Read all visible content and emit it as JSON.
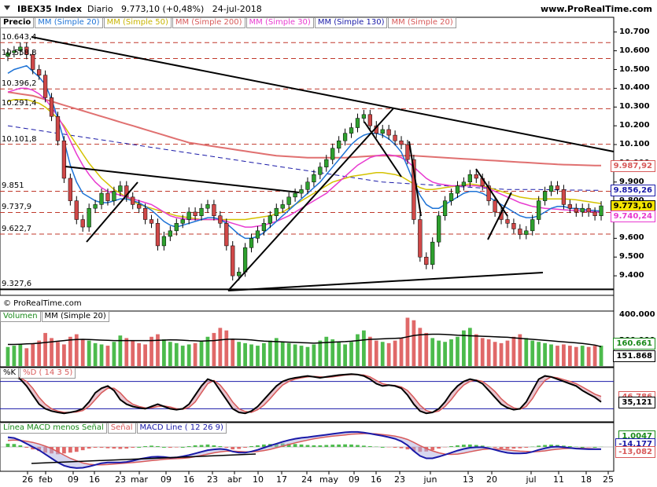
{
  "header": {
    "title": "IBEX35 Index",
    "period": "Diario",
    "last_change": "9.773,10 (+0,48%)",
    "date": "24-jul-2018",
    "site": "www.ProRealTime.com",
    "copyright": "© ProRealTime.com"
  },
  "price_panel": {
    "labels": [
      {
        "text": "Precio"
      },
      {
        "text": "MM (Simple 20)",
        "color": "#1e73d6"
      },
      {
        "text": "MM (Simple 50)",
        "color": "#c8b400"
      },
      {
        "text": "MM (Simple 200)",
        "color": "#d85a5a"
      },
      {
        "text": "MM (Simple 30)",
        "color": "#e83ad0"
      },
      {
        "text": "MM (Simple 130)",
        "color": "#1a1aa8"
      },
      {
        "text": "MM (Simple 20)",
        "color": "#d85a5a"
      }
    ],
    "level_labels": [
      "10.643,4",
      "10.558,8",
      "10.396,2",
      "10.291,4",
      "10.101,8",
      "9.851",
      "9.737,9",
      "9.622,7",
      "9.327,6"
    ],
    "axis_ticks": [
      "10.700",
      "10.600",
      "10.500",
      "10.400",
      "10.300",
      "10.200",
      "10.100",
      "10.000",
      "9.900",
      "9.800",
      "9.700",
      "9.600",
      "9.500",
      "9.400"
    ],
    "value_boxes": [
      {
        "text": "9.987,92",
        "color": "#d85a5a"
      },
      {
        "text": "9.856,26",
        "color": "#1a1aa8"
      },
      {
        "text": "9.773,10",
        "color": "#000000"
      },
      {
        "text": "9.740,24",
        "color": "#e83ad0"
      }
    ]
  },
  "volume_panel": {
    "labels": [
      {
        "text": "Volumen",
        "color": "#1a8a1a"
      },
      {
        "text": "MM (Simple 20)",
        "color": "#000000"
      }
    ],
    "axis_ticks": [
      "400.000",
      "200.000"
    ],
    "value_boxes": [
      {
        "text": "160.661",
        "color": "#1a8a1a"
      },
      {
        "text": "151.868",
        "color": "#000000"
      }
    ]
  },
  "stoch_panel": {
    "labels": [
      {
        "text": "%K",
        "color": "#000000"
      },
      {
        "text": "%D ( 14 3 5)",
        "color": "#d85a5a"
      }
    ],
    "value_boxes": [
      {
        "text": "46,786",
        "color": "#d85a5a"
      },
      {
        "text": "35,121",
        "color": "#000000"
      }
    ]
  },
  "macd_panel": {
    "labels": [
      {
        "text": "Línea MACD menos Señal",
        "color": "#1a8a1a"
      },
      {
        "text": "Señal",
        "color": "#d85a5a"
      },
      {
        "text": "MACD Line ( 12 26 9)",
        "color": "#1a1aa8"
      }
    ],
    "value_boxes": [
      {
        "text": "1,0047",
        "color": "#1a8a1a"
      },
      {
        "text": "-14,177",
        "color": "#1a1aa8"
      },
      {
        "text": "-13,082",
        "color": "#d85a5a"
      }
    ]
  },
  "x_axis": [
    "26",
    "feb",
    "09",
    "16",
    "23",
    "mar",
    "09",
    "16",
    "23",
    "abr",
    "10",
    "17",
    "24",
    "may",
    "09",
    "16",
    "23",
    "jun",
    "13",
    "20",
    "jul",
    "11",
    "18",
    "25"
  ],
  "chart_data": {
    "type": "candlestick",
    "y_range": [
      9300,
      10720
    ],
    "closes": [
      10590,
      10600,
      10620,
      10580,
      10500,
      10470,
      10350,
      10250,
      10120,
      9920,
      9800,
      9700,
      9660,
      9760,
      9780,
      9840,
      9800,
      9850,
      9880,
      9820,
      9780,
      9760,
      9700,
      9680,
      9560,
      9610,
      9640,
      9680,
      9700,
      9740,
      9720,
      9760,
      9780,
      9720,
      9680,
      9560,
      9400,
      9420,
      9550,
      9600,
      9640,
      9680,
      9720,
      9760,
      9780,
      9820,
      9840,
      9860,
      9900,
      9940,
      9980,
      10020,
      10080,
      10120,
      10160,
      10190,
      10240,
      10260,
      10200,
      10160,
      10180,
      10150,
      10120,
      10100,
      10020,
      9700,
      9500,
      9460,
      9580,
      9720,
      9800,
      9840,
      9880,
      9900,
      9940,
      9920,
      9880,
      9800,
      9740,
      9700,
      9680,
      9650,
      9620,
      9640,
      9700,
      9800,
      9850,
      9880,
      9860,
      9780,
      9760,
      9740,
      9760,
      9740,
      9720,
      9773
    ],
    "ma20": [
      10480,
      10500,
      10510,
      10520,
      10490,
      10460,
      10420,
      10340,
      10240,
      10120,
      9990,
      9900,
      9840,
      9820,
      9800,
      9790,
      9790,
      9800,
      9810,
      9810,
      9800,
      9790,
      9770,
      9750,
      9720,
      9690,
      9670,
      9660,
      9670,
      9680,
      9690,
      9700,
      9710,
      9710,
      9700,
      9680,
      9650,
      9620,
      9600,
      9600,
      9610,
      9630,
      9660,
      9690,
      9720,
      9750,
      9780,
      9810,
      9840,
      9870,
      9900,
      9940,
      9980,
      10020,
      10060,
      10100,
      10130,
      10150,
      10160,
      10160,
      10150,
      10130,
      10100,
      10060,
      9980,
      9900,
      9830,
      9780,
      9760,
      9760,
      9780,
      9800,
      9820,
      9840,
      9850,
      9850,
      9840,
      9820,
      9800,
      9780,
      9760,
      9740,
      9720,
      9710,
      9710,
      9720,
      9740,
      9760,
      9770,
      9770,
      9760,
      9760,
      9755,
      9750,
      9748,
      9745
    ],
    "ma50": [
      10330,
      10340,
      10340,
      10340,
      10330,
      10320,
      10300,
      10270,
      10240,
      10200,
      10150,
      10100,
      10050,
      10000,
      9960,
      9920,
      9890,
      9860,
      9840,
      9820,
      9800,
      9780,
      9770,
      9760,
      9750,
      9740,
      9730,
      9720,
      9715,
      9710,
      9705,
      9700,
      9700,
      9700,
      9700,
      9700,
      9700,
      9700,
      9700,
      9705,
      9710,
      9715,
      9720,
      9730,
      9740,
      9760,
      9780,
      9800,
      9820,
      9840,
      9860,
      9880,
      9900,
      9910,
      9920,
      9930,
      9935,
      9940,
      9945,
      9950,
      9950,
      9945,
      9940,
      9930,
      9910,
      9890,
      9870,
      9860,
      9860,
      9865,
      9870,
      9875,
      9880,
      9885,
      9890,
      9885,
      9880,
      9870,
      9860,
      9850,
      9840,
      9830,
      9820,
      9815,
      9810,
      9810,
      9810,
      9810,
      9810,
      9810,
      9808,
      9805,
      9800,
      9795,
      9790,
      9785
    ],
    "ma200": [
      10380,
      10375,
      10370,
      10365,
      10360,
      10350,
      10340,
      10330,
      10320,
      10310,
      10300,
      10290,
      10280,
      10270,
      10260,
      10250,
      10240,
      10230,
      10220,
      10210,
      10200,
      10190,
      10180,
      10170,
      10160,
      10150,
      10140,
      10130,
      10120,
      10110,
      10105,
      10100,
      10095,
      10090,
      10085,
      10080,
      10075,
      10070,
      10065,
      10060,
      10055,
      10050,
      10045,
      10040,
      10038,
      10036,
      10034,
      10032,
      10030,
      10030,
      10030,
      10030,
      10030,
      10030,
      10030,
      10032,
      10034,
      10036,
      10038,
      10040,
      10040,
      10040,
      10040,
      10040,
      10040,
      10040,
      10038,
      10036,
      10034,
      10032,
      10030,
      10028,
      10026,
      10024,
      10022,
      10020,
      10018,
      10016,
      10014,
      10012,
      10010,
      10008,
      10006,
      10004,
      10002,
      10000,
      9998,
      9996,
      9994,
      9993,
      9992,
      9991,
      9990,
      9989,
      9988,
      9988
    ],
    "ma30": [
      10380,
      10390,
      10400,
      10400,
      10390,
      10370,
      10340,
      10300,
      10250,
      10190,
      10120,
      10050,
      9990,
      9940,
      9900,
      9870,
      9850,
      9840,
      9830,
      9820,
      9810,
      9800,
      9790,
      9780,
      9760,
      9740,
      9720,
      9710,
      9705,
      9700,
      9700,
      9700,
      9700,
      9700,
      9700,
      9690,
      9680,
      9670,
      9660,
      9660,
      9665,
      9670,
      9680,
      9690,
      9705,
      9720,
      9740,
      9760,
      9780,
      9800,
      9820,
      9840,
      9870,
      9900,
      9930,
      9960,
      9990,
      10010,
      10030,
      10040,
      10045,
      10045,
      10040,
      10030,
      10010,
      9980,
      9950,
      9920,
      9900,
      9890,
      9885,
      9880,
      9880,
      9880,
      9880,
      9880,
      9875,
      9865,
      9850,
      9835,
      9820,
      9805,
      9790,
      9780,
      9770,
      9765,
      9760,
      9758,
      9755,
      9752,
      9750,
      9748,
      9745,
      9743,
      9741,
      9740
    ],
    "ma130_dashed": [
      10200,
      10195,
      10190,
      10185,
      10180,
      10175,
      10170,
      10165,
      10160,
      10155,
      10150,
      10145,
      10140,
      10135,
      10130,
      10125,
      10120,
      10115,
      10110,
      10105,
      10100,
      10095,
      10090,
      10085,
      10080,
      10075,
      10070,
      10065,
      10060,
      10055,
      10050,
      10045,
      10040,
      10035,
      10030,
      10025,
      10020,
      10015,
      10010,
      10005,
      10000,
      9995,
      9990,
      9985,
      9980,
      9975,
      9970,
      9965,
      9960,
      9955,
      9950,
      9945,
      9940,
      9935,
      9930,
      9925,
      9920,
      9915,
      9910,
      9905,
      9900,
      9898,
      9896,
      9894,
      9892,
      9890,
      9888,
      9886,
      9884,
      9882,
      9880,
      9878,
      9876,
      9874,
      9872,
      9870,
      9868,
      9866,
      9864,
      9862,
      9860,
      9860,
      9860,
      9860,
      9860,
      9860,
      9859,
      9859,
      9858,
      9858,
      9857,
      9857,
      9857,
      9856,
      9856,
      9856
    ],
    "volume": [
      150,
      160,
      170,
      140,
      180,
      200,
      260,
      220,
      190,
      170,
      230,
      250,
      210,
      200,
      180,
      170,
      160,
      190,
      240,
      220,
      200,
      180,
      170,
      230,
      250,
      210,
      190,
      180,
      160,
      170,
      180,
      200,
      230,
      260,
      300,
      280,
      210,
      190,
      180,
      170,
      160,
      180,
      200,
      220,
      190,
      180,
      170,
      160,
      150,
      170,
      200,
      230,
      210,
      190,
      170,
      190,
      250,
      280,
      230,
      200,
      190,
      180,
      200,
      220,
      380,
      360,
      300,
      260,
      220,
      200,
      190,
      210,
      230,
      280,
      300,
      250,
      220,
      210,
      190,
      180,
      200,
      230,
      250,
      220,
      200,
      190,
      180,
      170,
      160,
      170,
      160,
      150,
      160,
      150,
      160,
      160
    ],
    "volume_ma20": [
      170,
      170,
      172,
      174,
      176,
      180,
      185,
      190,
      195,
      200,
      205,
      208,
      210,
      208,
      206,
      204,
      202,
      200,
      200,
      200,
      200,
      200,
      200,
      200,
      202,
      204,
      206,
      205,
      203,
      200,
      198,
      196,
      198,
      200,
      205,
      210,
      212,
      210,
      208,
      205,
      200,
      196,
      194,
      192,
      190,
      188,
      186,
      184,
      182,
      180,
      182,
      185,
      188,
      190,
      192,
      195,
      200,
      205,
      210,
      212,
      214,
      216,
      218,
      220,
      230,
      240,
      245,
      248,
      250,
      250,
      248,
      245,
      242,
      240,
      238,
      236,
      234,
      232,
      230,
      228,
      226,
      222,
      218,
      214,
      210,
      206,
      202,
      198,
      194,
      190,
      186,
      182,
      178,
      172,
      165,
      152
    ],
    "stoch_k": [
      90,
      92,
      85,
      70,
      50,
      30,
      20,
      15,
      12,
      10,
      12,
      15,
      20,
      35,
      55,
      65,
      70,
      60,
      40,
      30,
      25,
      22,
      20,
      25,
      30,
      25,
      20,
      18,
      20,
      30,
      50,
      70,
      85,
      80,
      60,
      40,
      20,
      12,
      10,
      15,
      25,
      40,
      55,
      70,
      80,
      85,
      88,
      90,
      92,
      90,
      88,
      90,
      92,
      94,
      95,
      96,
      95,
      92,
      85,
      75,
      70,
      72,
      70,
      65,
      50,
      30,
      15,
      10,
      12,
      20,
      35,
      55,
      70,
      80,
      85,
      82,
      75,
      60,
      45,
      30,
      22,
      18,
      20,
      35,
      60,
      85,
      92,
      90,
      85,
      80,
      75,
      70,
      60,
      52,
      45,
      35
    ],
    "stoch_d": [
      88,
      90,
      88,
      80,
      65,
      45,
      30,
      20,
      15,
      12,
      12,
      13,
      16,
      25,
      40,
      55,
      65,
      65,
      55,
      40,
      30,
      25,
      22,
      22,
      25,
      26,
      24,
      20,
      19,
      23,
      35,
      55,
      75,
      82,
      72,
      55,
      35,
      20,
      14,
      12,
      18,
      28,
      42,
      58,
      72,
      80,
      85,
      88,
      90,
      91,
      90,
      89,
      90,
      92,
      94,
      95,
      95,
      94,
      90,
      82,
      75,
      72,
      71,
      68,
      60,
      45,
      28,
      16,
      12,
      15,
      25,
      40,
      58,
      72,
      80,
      83,
      80,
      70,
      58,
      42,
      30,
      22,
      19,
      25,
      42,
      65,
      82,
      90,
      88,
      84,
      80,
      75,
      68,
      60,
      52,
      47
    ],
    "macd_hist": [
      20,
      18,
      10,
      -5,
      -15,
      -25,
      -35,
      -40,
      -45,
      -40,
      -35,
      -30,
      -20,
      -10,
      -5,
      -5,
      -8,
      -10,
      -12,
      -10,
      -5,
      0,
      5,
      8,
      5,
      0,
      -5,
      -3,
      0,
      5,
      10,
      12,
      15,
      10,
      5,
      -5,
      -15,
      -12,
      -5,
      5,
      10,
      15,
      18,
      20,
      22,
      20,
      18,
      15,
      12,
      10,
      10,
      12,
      14,
      15,
      16,
      15,
      12,
      8,
      5,
      2,
      0,
      -2,
      -5,
      -8,
      -15,
      -25,
      -30,
      -28,
      -20,
      -10,
      -2,
      5,
      10,
      14,
      15,
      12,
      8,
      2,
      -5,
      -10,
      -12,
      -10,
      -8,
      -5,
      2,
      8,
      12,
      14,
      12,
      8,
      5,
      2,
      0,
      -2,
      0,
      1
    ],
    "macd_line": [
      60,
      55,
      40,
      20,
      0,
      -20,
      -45,
      -70,
      -95,
      -115,
      -125,
      -130,
      -128,
      -120,
      -110,
      -100,
      -95,
      -95,
      -95,
      -92,
      -85,
      -75,
      -68,
      -62,
      -60,
      -62,
      -66,
      -64,
      -58,
      -50,
      -40,
      -30,
      -20,
      -15,
      -12,
      -16,
      -28,
      -35,
      -35,
      -28,
      -18,
      -5,
      8,
      20,
      32,
      42,
      50,
      56,
      60,
      65,
      70,
      75,
      80,
      85,
      90,
      92,
      92,
      88,
      82,
      75,
      68,
      60,
      50,
      35,
      10,
      -25,
      -55,
      -70,
      -70,
      -60,
      -48,
      -35,
      -22,
      -12,
      -5,
      -2,
      -2,
      -8,
      -18,
      -28,
      -36,
      -40,
      -40,
      -38,
      -30,
      -18,
      -8,
      0,
      2,
      -2,
      -6,
      -10,
      -12,
      -14,
      -14,
      -14
    ],
    "macd_signal": [
      40,
      42,
      40,
      35,
      28,
      18,
      5,
      -10,
      -30,
      -50,
      -70,
      -85,
      -98,
      -106,
      -110,
      -110,
      -108,
      -105,
      -102,
      -99,
      -96,
      -92,
      -88,
      -84,
      -80,
      -76,
      -74,
      -72,
      -70,
      -66,
      -60,
      -52,
      -44,
      -36,
      -30,
      -26,
      -26,
      -28,
      -30,
      -30,
      -28,
      -22,
      -15,
      -5,
      5,
      15,
      25,
      34,
      42,
      50,
      56,
      62,
      66,
      70,
      74,
      78,
      80,
      82,
      82,
      80,
      76,
      72,
      66,
      58,
      46,
      28,
      8,
      -10,
      -24,
      -36,
      -44,
      -46,
      -44,
      -38,
      -30,
      -22,
      -16,
      -12,
      -12,
      -14,
      -18,
      -22,
      -26,
      -28,
      -30,
      -28,
      -24,
      -18,
      -14,
      -10,
      -8,
      -8,
      -8,
      -10,
      -12,
      -13
    ]
  }
}
